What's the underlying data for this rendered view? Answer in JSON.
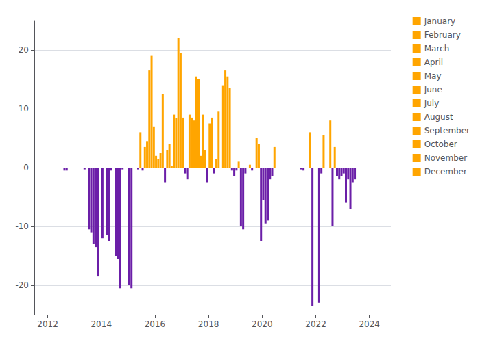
{
  "chart_data": {
    "type": "bar",
    "xlim": [
      2011.5,
      2024.8
    ],
    "xticks": [
      2012,
      2014,
      2016,
      2018,
      2020,
      2022,
      2024
    ],
    "ylim": [
      -25,
      25
    ],
    "yticks": [
      -20,
      -10,
      0,
      10,
      20
    ],
    "grid": true,
    "legend": "upper right",
    "series": [
      {
        "name": "January",
        "color": "#FFA500",
        "x": [
          2013.541667,
          2014.541667,
          2015.541667,
          2016.541667,
          2017.541667,
          2018.541667,
          2019.541667,
          2021.541667,
          2022.541667
        ],
        "values": [
          -10.5,
          -15.0,
          -0.5,
          4.0,
          15.5,
          14.0,
          0.5,
          -0.5,
          8.0
        ],
        "colors": [
          "#6B1FA8",
          "#6B1FA8",
          "#6B1FA8",
          "#FFA500",
          "#FFA500",
          "#FFA500",
          "#FFA500",
          "#6B1FA8",
          "#FFA500"
        ]
      },
      {
        "name": "February",
        "color": "#FFA500",
        "x": [
          2012.625,
          2013.625,
          2014.625,
          2015.625,
          2016.625,
          2017.625,
          2018.625,
          2019.625,
          2022.625
        ],
        "values": [
          -0.5,
          -11.0,
          -15.5,
          3.5,
          0.3,
          15.0,
          16.5,
          -0.5,
          -10.0
        ],
        "colors": [
          "#6B1FA8",
          "#6B1FA8",
          "#6B1FA8",
          "#FFA500",
          "#FFA500",
          "#FFA500",
          "#FFA500",
          "#6B1FA8",
          "#6B1FA8"
        ]
      },
      {
        "name": "March",
        "color": "#FFA500",
        "x": [
          2012.708333,
          2013.708333,
          2014.708333,
          2015.708333,
          2016.708333,
          2017.708333,
          2018.708333,
          2022.708333
        ],
        "values": [
          -0.5,
          -13.0,
          -20.5,
          4.5,
          9.0,
          2.0,
          15.5,
          3.5
        ],
        "colors": [
          "#6B1FA8",
          "#6B1FA8",
          "#6B1FA8",
          "#FFA500",
          "#FFA500",
          "#FFA500",
          "#FFA500",
          "#FFA500"
        ]
      },
      {
        "name": "April",
        "color": "#FFA500",
        "x": [
          2013.791667,
          2014.791667,
          2015.791667,
          2016.791667,
          2017.791667,
          2018.791667,
          2019.791667,
          2021.791667,
          2022.791667
        ],
        "values": [
          -13.5,
          -0.3,
          16.5,
          8.5,
          9.0,
          13.5,
          5.0,
          6.0,
          -1.5
        ],
        "colors": [
          "#6B1FA8",
          "#6B1FA8",
          "#FFA500",
          "#FFA500",
          "#FFA500",
          "#FFA500",
          "#FFA500",
          "#FFA500",
          "#6B1FA8"
        ]
      },
      {
        "name": "May",
        "color": "#FFA500",
        "x": [
          2013.875,
          2015.875,
          2016.875,
          2017.875,
          2018.875,
          2019.875,
          2021.875,
          2022.875
        ],
        "values": [
          -18.5,
          19.0,
          22.0,
          3.0,
          -0.5,
          4.0,
          -23.5,
          -2.0
        ],
        "colors": [
          "#6B1FA8",
          "#FFA500",
          "#FFA500",
          "#FFA500",
          "#6B1FA8",
          "#FFA500",
          "#6B1FA8",
          "#6B1FA8"
        ]
      },
      {
        "name": "June",
        "color": "#FFA500",
        "x": [
          2015.958333,
          2016.958333,
          2017.958333,
          2018.958333,
          2019.958333,
          2022.958333
        ],
        "values": [
          7.0,
          19.5,
          -2.5,
          -1.5,
          -12.5,
          -1.5
        ],
        "colors": [
          "#FFA500",
          "#FFA500",
          "#6B1FA8",
          "#6B1FA8",
          "#6B1FA8",
          "#6B1FA8"
        ]
      },
      {
        "name": "July",
        "color": "#FFA500",
        "x": [
          2014.041667,
          2015.041667,
          2016.041667,
          2017.041667,
          2018.041667,
          2019.041667,
          2020.041667,
          2023.041667
        ],
        "values": [
          -12.0,
          -20.0,
          2.0,
          8.5,
          7.5,
          -0.5,
          -5.5,
          -1.0
        ],
        "colors": [
          "#6B1FA8",
          "#6B1FA8",
          "#FFA500",
          "#FFA500",
          "#FFA500",
          "#6B1FA8",
          "#6B1FA8",
          "#6B1FA8"
        ]
      },
      {
        "name": "August",
        "color": "#FFA500",
        "x": [
          2015.125,
          2016.125,
          2017.125,
          2018.125,
          2019.125,
          2020.125,
          2022.125,
          2023.125
        ],
        "values": [
          -20.5,
          1.5,
          -1.0,
          8.5,
          1.0,
          -9.5,
          -23.0,
          -6.0
        ],
        "colors": [
          "#6B1FA8",
          "#FFA500",
          "#6B1FA8",
          "#FFA500",
          "#FFA500",
          "#6B1FA8",
          "#6B1FA8",
          "#6B1FA8"
        ]
      },
      {
        "name": "September",
        "color": "#FFA500",
        "x": [
          2014.208333,
          2016.208333,
          2017.208333,
          2018.208333,
          2019.208333,
          2020.208333,
          2022.208333,
          2023.208333
        ],
        "values": [
          -11.5,
          2.5,
          -2.0,
          -1.0,
          -10.0,
          -9.0,
          -1.0,
          -2.0
        ],
        "colors": [
          "#6B1FA8",
          "#FFA500",
          "#6B1FA8",
          "#6B1FA8",
          "#6B1FA8",
          "#6B1FA8",
          "#6B1FA8",
          "#6B1FA8"
        ]
      },
      {
        "name": "October",
        "color": "#FFA500",
        "x": [
          2014.291667,
          2016.291667,
          2017.291667,
          2018.291667,
          2019.291667,
          2020.291667,
          2022.291667,
          2023.291667
        ],
        "values": [
          -12.5,
          12.5,
          9.0,
          1.5,
          -10.5,
          -2.0,
          5.5,
          -7.0
        ],
        "colors": [
          "#6B1FA8",
          "#FFA500",
          "#FFA500",
          "#FFA500",
          "#6B1FA8",
          "#6B1FA8",
          "#FFA500",
          "#6B1FA8"
        ]
      },
      {
        "name": "November",
        "color": "#FFA500",
        "x": [
          2013.375,
          2014.375,
          2015.375,
          2016.375,
          2017.375,
          2018.375,
          2019.375,
          2020.375,
          2023.375
        ],
        "values": [
          -0.3,
          -0.5,
          -0.3,
          -2.5,
          8.5,
          9.5,
          -1.0,
          -1.5,
          -2.5
        ],
        "colors": [
          "#6B1FA8",
          "#6B1FA8",
          "#6B1FA8",
          "#6B1FA8",
          "#FFA500",
          "#FFA500",
          "#6B1FA8",
          "#6B1FA8",
          "#6B1FA8"
        ]
      },
      {
        "name": "December",
        "color": "#FFA500",
        "x": [
          2015.458333,
          2016.458333,
          2017.458333,
          2020.458333,
          2021.458333,
          2023.458333
        ],
        "values": [
          6.0,
          3.0,
          8.0,
          3.5,
          -0.3,
          -2.0
        ],
        "colors": [
          "#FFA500",
          "#FFA500",
          "#FFA500",
          "#FFA500",
          "#6B1FA8",
          "#6B1FA8"
        ]
      }
    ]
  }
}
